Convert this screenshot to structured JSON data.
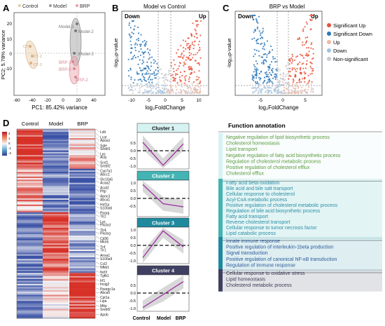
{
  "panels": {
    "A": {
      "label": "A",
      "legend": [
        "Control",
        "Model",
        "BRP"
      ],
      "xlabel": "PC1: 85.42% variance",
      "ylabel": "PC2: 5.78% variance",
      "xticks": [
        "-60",
        "-40",
        "-20",
        "0",
        "20",
        "40"
      ],
      "yticks": [
        "20",
        "10",
        "0",
        "-10"
      ],
      "points": {
        "control": [
          "CT-1",
          "CT-2",
          "CT-3"
        ],
        "model": [
          "Model-1",
          "Model-2",
          "Model-3"
        ],
        "brp": [
          "BRP-1",
          "BRP-2",
          "BRP-3"
        ]
      }
    },
    "B": {
      "label": "B",
      "title": "Model vs Control",
      "down": "Down",
      "up": "Up",
      "xlabel": "log₂FoldChange",
      "ylabel": "-log₁₀p-value",
      "xticks": [
        "-10",
        "-5",
        "0",
        "5",
        "10"
      ]
    },
    "C": {
      "label": "C",
      "title": "BRP vs Model",
      "down": "Down",
      "up": "Up",
      "xlabel": "log₂FoldChange",
      "ylabel": "-log₁₀p-value",
      "xticks": [
        "-5",
        "0",
        "5"
      ],
      "legend": [
        "Significant Up",
        "Significant Down",
        "Up",
        "Down",
        "Non-significant"
      ]
    },
    "D": {
      "label": "D",
      "columns": [
        "Control",
        "Model",
        "BRP"
      ],
      "scale_ticks": [
        "2",
        "1",
        "0",
        "-1",
        "-2"
      ],
      "genes": [
        "Ldlr",
        "Lcat",
        "Apoa1",
        "Sgle",
        "Srebf1",
        "Lpc",
        "Acly",
        "Scd1",
        "Srebf2",
        "Cyp7a1",
        "Abcc1",
        "Slc10a5",
        "Acaa2",
        "Acat2",
        "Pltp",
        "Apoc3",
        "Abca1",
        "Hnf1a",
        "S100a6",
        "Pparg",
        "Tlr2",
        "Lyz",
        "Pik3cd",
        "Tlr4",
        "Pik3cg",
        "Cd36",
        "Mknb",
        "Tnf",
        "Tlr1",
        "Anxa1",
        "S100a9",
        "Ccl2",
        "Nfkb1",
        "Ncf2",
        "Tgfb1",
        "Irf1",
        "Insig2",
        "Ppargc1a",
        "Abca5",
        "Cpt1a",
        "Lipa",
        "Mttp",
        "Srebf2",
        "Apob"
      ],
      "clusters": [
        {
          "title": "Cluster 1",
          "yticks": [
            "0.5",
            "0.0",
            "-0.5",
            "-1.0"
          ],
          "values": [
            0.55,
            -0.95,
            0.45
          ]
        },
        {
          "title": "Cluster 2",
          "yticks": [
            "1.0",
            "0.5",
            "0.0",
            "-0.5"
          ],
          "values": [
            0.9,
            -0.35,
            -0.55
          ]
        },
        {
          "title": "Cluster 3",
          "yticks": [
            "1.0",
            "0.5",
            "0.0",
            "-0.5",
            "-1.0"
          ],
          "values": [
            -0.8,
            0.95,
            -0.1
          ]
        },
        {
          "title": "Cluster 4",
          "yticks": [
            "0.5",
            "0.0",
            "-0.5",
            "-1.0"
          ],
          "values": [
            -0.95,
            -0.1,
            0.75
          ]
        }
      ],
      "cluster_xlabels": [
        "Control",
        "Model",
        "BRP"
      ],
      "function_title": "Function annotation",
      "functions": {
        "group1": [
          "Negative regulation of lipid biosynthetic process",
          "Cholesterol homeostasis",
          "Lipid transport",
          "Negative regulation of fatty acid biosynthetic process",
          "Regulation of cholesterol metabolic process",
          "Positive regulation of cholesterol efflux",
          "Cholesterol efflux"
        ],
        "group2": [
          "Fatty acid beta-oxidation",
          "Bile acid and bile salt transport",
          "Cellular response to cholesterol",
          "Acyl-CoA metabolic process",
          "Positive regulation of cholesterol metabolic process",
          "Regulation of bile acid biosynthetic process",
          "Fatty acid transport",
          "Reverse cholesterol transport",
          "Cellular response to tumor necrosis factor",
          "Lipid catabolic process"
        ],
        "group3": [
          "Innate immune response",
          "Positive regulation of interleukin-1beta production",
          "Signal transduction",
          "Positive regulation of canonical NF-κB transduction",
          "Regulation of immune response"
        ],
        "group4": [
          "Cellular response to oxidative stress",
          "Lipid homeostasis",
          "Cholesterol metabolic process"
        ]
      }
    }
  },
  "colors": {
    "control": "#e7c9a4",
    "model": "#9a9a9a",
    "brp": "#e9a0a8",
    "sig_up": "#e8533a",
    "sig_down": "#2a77b8",
    "up": "#f2b6a0",
    "down": "#9cc4e2",
    "nonsig": "#c9c9d2",
    "heat_high": "#d73027",
    "heat_low": "#3b52a6"
  }
}
